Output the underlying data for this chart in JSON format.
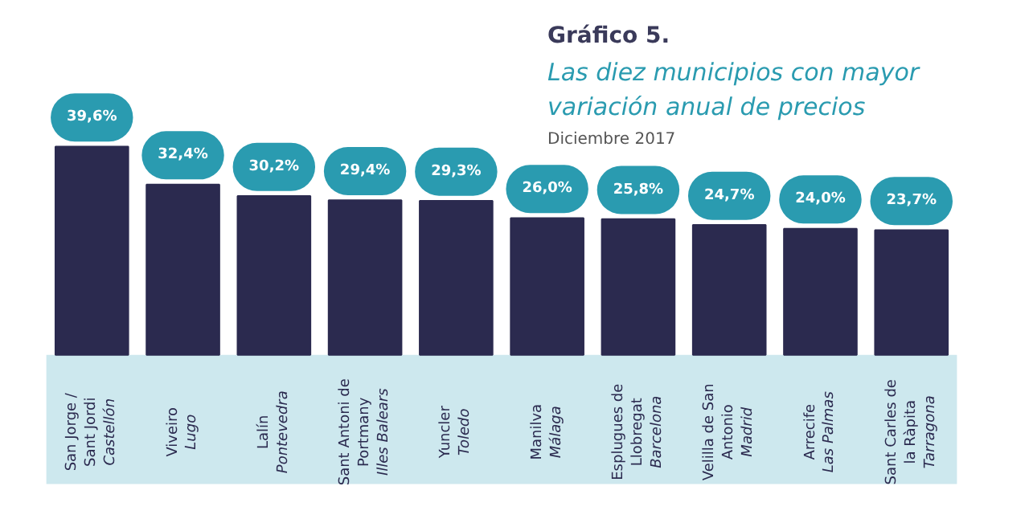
{
  "chart_data": {
    "type": "bar",
    "title": "Gráfico 5.",
    "subtitle": "Las diez municipios con mayor variación anual de precios",
    "annotations": [
      "Diciembre 2017"
    ],
    "categories": [
      "San Jorge /\nSant Jordi\nCastellón",
      "Viveiro\nLugo",
      "Lalín\nPontevedra",
      "Sant Antoni de\nPortmany\nIlles Balears",
      "Yuncler\nToledo",
      "Manilva\nMálaga",
      "Esplugues de\nLlobregat\nBarcelona",
      "Velilla de San\nAntonio\nMadrid",
      "Arrecife\nLas Palmas",
      "Sant Carles de\nla Ràpita\nTarragona"
    ],
    "values": [
      39.6,
      32.4,
      30.2,
      29.4,
      29.3,
      26.0,
      25.8,
      24.7,
      24.0,
      23.7
    ],
    "value_labels": [
      "39,6%",
      "32,4%",
      "30,2%",
      "29,4%",
      "29,3%",
      "26,0%",
      "25,8%",
      "24,7%",
      "24,0%",
      "23,7%"
    ],
    "color": "#2b2a4f",
    "grid": false
  }
}
